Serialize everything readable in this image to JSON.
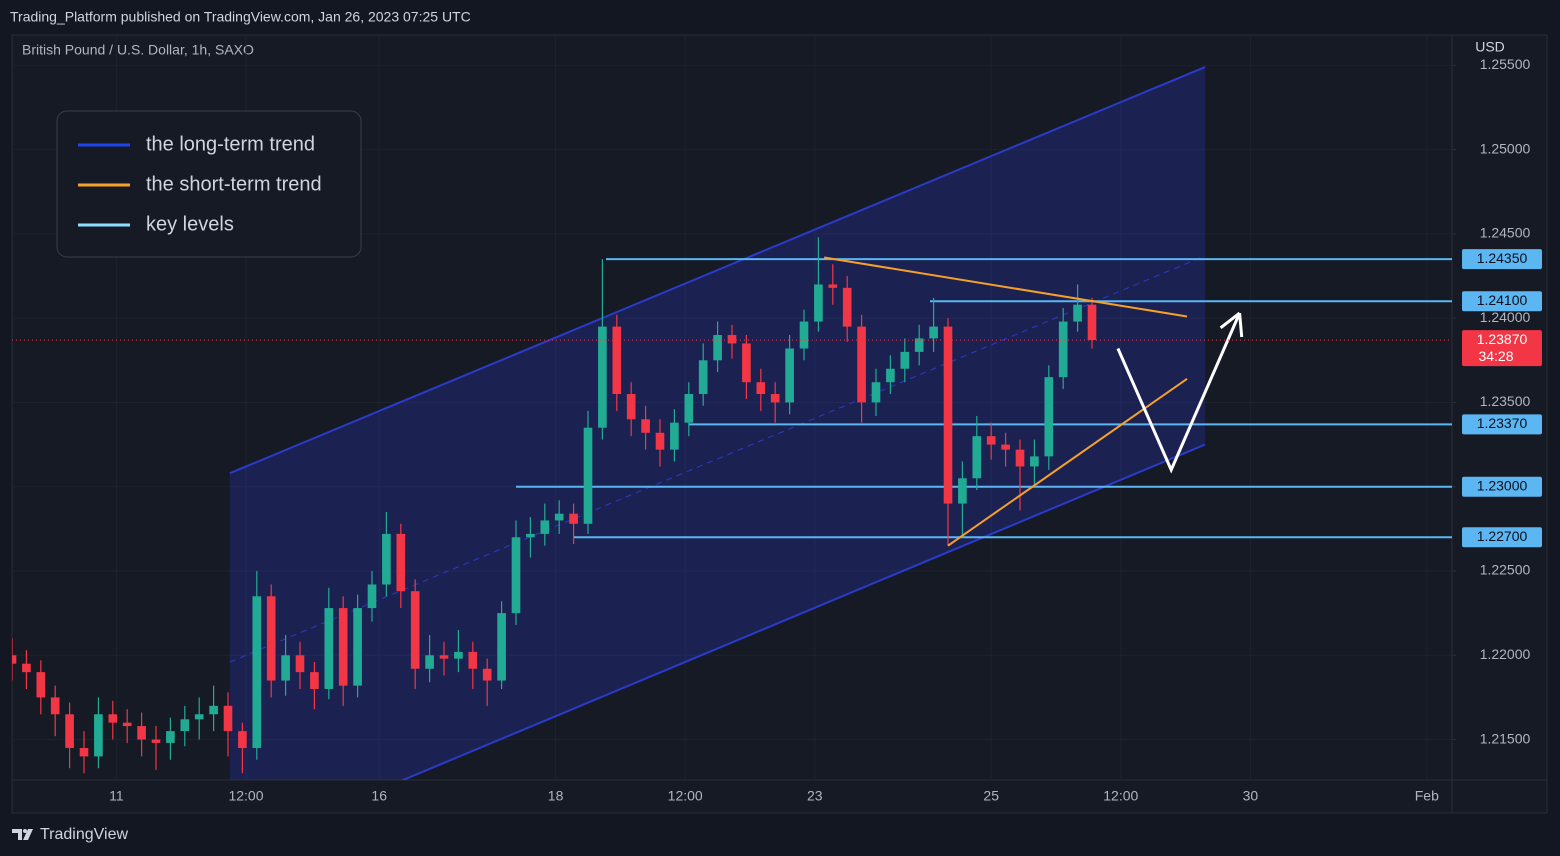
{
  "header": {
    "publisher": "Trading_Platform published on TradingView.com, Jan 26, 2023 07:25 UTC"
  },
  "footer": {
    "brand": "TradingView"
  },
  "chart_data": {
    "type": "candlestick",
    "title": "British Pound / U.S. Dollar, 1h, SAXO",
    "y_axis_label": "USD",
    "x": [
      0,
      4,
      8,
      12,
      16,
      20,
      24,
      28,
      32,
      36,
      40,
      44,
      48,
      52,
      56,
      60,
      64,
      68,
      72,
      76,
      80,
      84,
      88,
      92,
      96,
      100,
      104,
      108,
      112,
      116,
      120,
      124,
      128,
      132,
      136,
      140,
      144,
      148,
      152,
      156,
      160,
      164,
      168,
      172,
      176,
      180,
      184,
      188,
      192,
      196,
      200,
      204,
      208,
      212,
      216,
      220,
      224,
      228,
      232,
      236,
      240,
      244,
      248,
      252,
      256,
      260,
      264,
      268,
      272,
      276,
      280,
      284,
      288,
      292,
      296,
      300
    ],
    "open": [
      1.22,
      1.2195,
      1.219,
      1.2175,
      1.2165,
      1.2145,
      1.214,
      1.2165,
      1.216,
      1.2158,
      1.215,
      1.2148,
      1.2155,
      1.2162,
      1.2165,
      1.217,
      1.2155,
      1.2145,
      1.2235,
      1.2185,
      1.22,
      1.219,
      1.218,
      1.2228,
      1.2182,
      1.2228,
      1.2242,
      1.2272,
      1.2238,
      1.2192,
      1.22,
      1.2198,
      1.2202,
      1.2192,
      1.2185,
      1.2225,
      1.227,
      1.2272,
      1.228,
      1.2284,
      1.2278,
      1.2335,
      1.2395,
      1.2355,
      1.234,
      1.2332,
      1.2322,
      1.2338,
      1.2355,
      1.2375,
      1.239,
      1.2385,
      1.2362,
      1.2355,
      1.235,
      1.2382,
      1.2398,
      1.242,
      1.2418,
      1.2395,
      1.235,
      1.2362,
      1.237,
      1.238,
      1.2388,
      1.2395,
      1.229,
      1.2305,
      1.233,
      1.2325,
      1.2322,
      1.2312,
      1.2318,
      1.2365,
      1.2398,
      1.2408
    ],
    "high": [
      1.221,
      1.2203,
      1.2197,
      1.2182,
      1.2172,
      1.2155,
      1.2175,
      1.2173,
      1.2168,
      1.2166,
      1.2158,
      1.2163,
      1.217,
      1.2175,
      1.2182,
      1.2178,
      1.216,
      1.225,
      1.2242,
      1.2212,
      1.2208,
      1.2196,
      1.224,
      1.2235,
      1.2236,
      1.225,
      1.2285,
      1.2278,
      1.2245,
      1.2212,
      1.2208,
      1.2215,
      1.2208,
      1.2198,
      1.2232,
      1.228,
      1.2282,
      1.229,
      1.2292,
      1.229,
      1.2345,
      1.2435,
      1.2402,
      1.2362,
      1.2348,
      1.234,
      1.2346,
      1.2362,
      1.2385,
      1.2398,
      1.2396,
      1.239,
      1.237,
      1.2362,
      1.239,
      1.2405,
      1.2448,
      1.2432,
      1.2425,
      1.2402,
      1.237,
      1.2378,
      1.2388,
      1.2396,
      1.2412,
      1.24,
      1.2315,
      1.2342,
      1.2338,
      1.2332,
      1.2328,
      1.2328,
      1.2372,
      1.2406,
      1.242,
      1.2412
    ],
    "low": [
      1.2185,
      1.218,
      1.2165,
      1.2152,
      1.2133,
      1.213,
      1.2133,
      1.215,
      1.2148,
      1.214,
      1.2132,
      1.2138,
      1.2146,
      1.215,
      1.2155,
      1.214,
      1.213,
      1.2138,
      1.2175,
      1.2176,
      1.218,
      1.2168,
      1.2174,
      1.217,
      1.2175,
      1.222,
      1.2235,
      1.2228,
      1.218,
      1.2184,
      1.2188,
      1.219,
      1.218,
      1.217,
      1.218,
      1.2218,
      1.2258,
      1.2265,
      1.2272,
      1.2266,
      1.2272,
      1.2328,
      1.2345,
      1.233,
      1.2322,
      1.2312,
      1.2315,
      1.233,
      1.2348,
      1.2368,
      1.2376,
      1.2352,
      1.2345,
      1.2338,
      1.2343,
      1.2375,
      1.2392,
      1.2408,
      1.2386,
      1.2338,
      1.2342,
      1.2355,
      1.2362,
      1.2372,
      1.238,
      1.2265,
      1.227,
      1.2298,
      1.2316,
      1.2312,
      1.2286,
      1.23,
      1.231,
      1.2358,
      1.2392,
      1.2382
    ],
    "close": [
      1.2195,
      1.219,
      1.2175,
      1.2165,
      1.2145,
      1.214,
      1.2165,
      1.216,
      1.2158,
      1.215,
      1.2148,
      1.2155,
      1.2162,
      1.2165,
      1.217,
      1.2155,
      1.2145,
      1.2235,
      1.2185,
      1.22,
      1.219,
      1.218,
      1.2228,
      1.2182,
      1.2228,
      1.2242,
      1.2272,
      1.2238,
      1.2192,
      1.22,
      1.2198,
      1.2202,
      1.2192,
      1.2185,
      1.2225,
      1.227,
      1.2272,
      1.228,
      1.2284,
      1.2278,
      1.2335,
      1.2395,
      1.2355,
      1.234,
      1.2332,
      1.2322,
      1.2338,
      1.2355,
      1.2375,
      1.239,
      1.2385,
      1.2362,
      1.2355,
      1.235,
      1.2382,
      1.2398,
      1.242,
      1.2418,
      1.2395,
      1.235,
      1.2362,
      1.237,
      1.238,
      1.2388,
      1.2395,
      1.229,
      1.2305,
      1.233,
      1.2325,
      1.2322,
      1.2312,
      1.2318,
      1.2365,
      1.2398,
      1.2408,
      1.2387
    ],
    "up_color": "#22ab94",
    "down_color": "#f23645",
    "xlim": [
      0,
      400
    ],
    "xticks": [
      {
        "value": 29,
        "label": "11"
      },
      {
        "value": 65,
        "label": "12:00"
      },
      {
        "value": 102,
        "label": "16"
      },
      {
        "value": 151,
        "label": "18"
      },
      {
        "value": 187,
        "label": "12:00"
      },
      {
        "value": 223,
        "label": "23"
      },
      {
        "value": 272,
        "label": "25"
      },
      {
        "value": 308,
        "label": "12:00"
      },
      {
        "value": 344,
        "label": "30"
      },
      {
        "value": 393,
        "label": "Feb"
      }
    ],
    "ylim": [
      1.2126,
      1.2568
    ],
    "yticks": [
      {
        "value": 1.255,
        "label": "1.25500"
      },
      {
        "value": 1.25,
        "label": "1.25000"
      },
      {
        "value": 1.245,
        "label": "1.24500"
      },
      {
        "value": 1.24,
        "label": "1.24000"
      },
      {
        "value": 1.235,
        "label": "1.23500"
      },
      {
        "value": 1.23,
        "label": "1.23000"
      },
      {
        "value": 1.225,
        "label": "1.22500"
      },
      {
        "value": 1.22,
        "label": "1.22000"
      },
      {
        "value": 1.215,
        "label": "1.21500"
      }
    ],
    "grid": true,
    "legend": {
      "position": "upper left",
      "entries": [
        {
          "name": "the long-term trend",
          "color": "#1f45f0"
        },
        {
          "name": "the short-term trend",
          "color": "#f7a12c"
        },
        {
          "name": "key levels",
          "color": "#8fe0ff"
        }
      ]
    },
    "channel": {
      "x": [
        60.5,
        331.4
      ],
      "upper": [
        1.2308,
        1.2549
      ],
      "middle": [
        1.2196,
        1.2437
      ],
      "lower": [
        1.2083,
        1.2325
      ],
      "color": "#2a3bc9"
    },
    "short_term_lines": [
      {
        "x": [
          225.6,
          326.4
        ],
        "y": [
          1.2436,
          1.2401
        ]
      },
      {
        "x": [
          260,
          326.4
        ],
        "y": [
          1.2265,
          1.2364
        ]
      }
    ],
    "short_term_color": "#f5a02a",
    "key_levels": {
      "values": [
        1.2435,
        1.241,
        1.2337,
        1.23,
        1.227
      ],
      "value_labels": [
        "1.24350",
        "1.24100",
        "1.23370",
        "1.23000",
        "1.22700"
      ],
      "from": [
        165,
        255,
        188,
        140,
        156
      ],
      "color": "#5bb6f2"
    },
    "last_price": {
      "value": 1.2387,
      "label": "1.23870",
      "countdown": "34:28",
      "color": "#f23645"
    },
    "projection": {
      "x": [
        307.2,
        322,
        341
      ],
      "y": [
        1.2382,
        1.231,
        1.2403
      ],
      "color": "#ffffff"
    }
  }
}
